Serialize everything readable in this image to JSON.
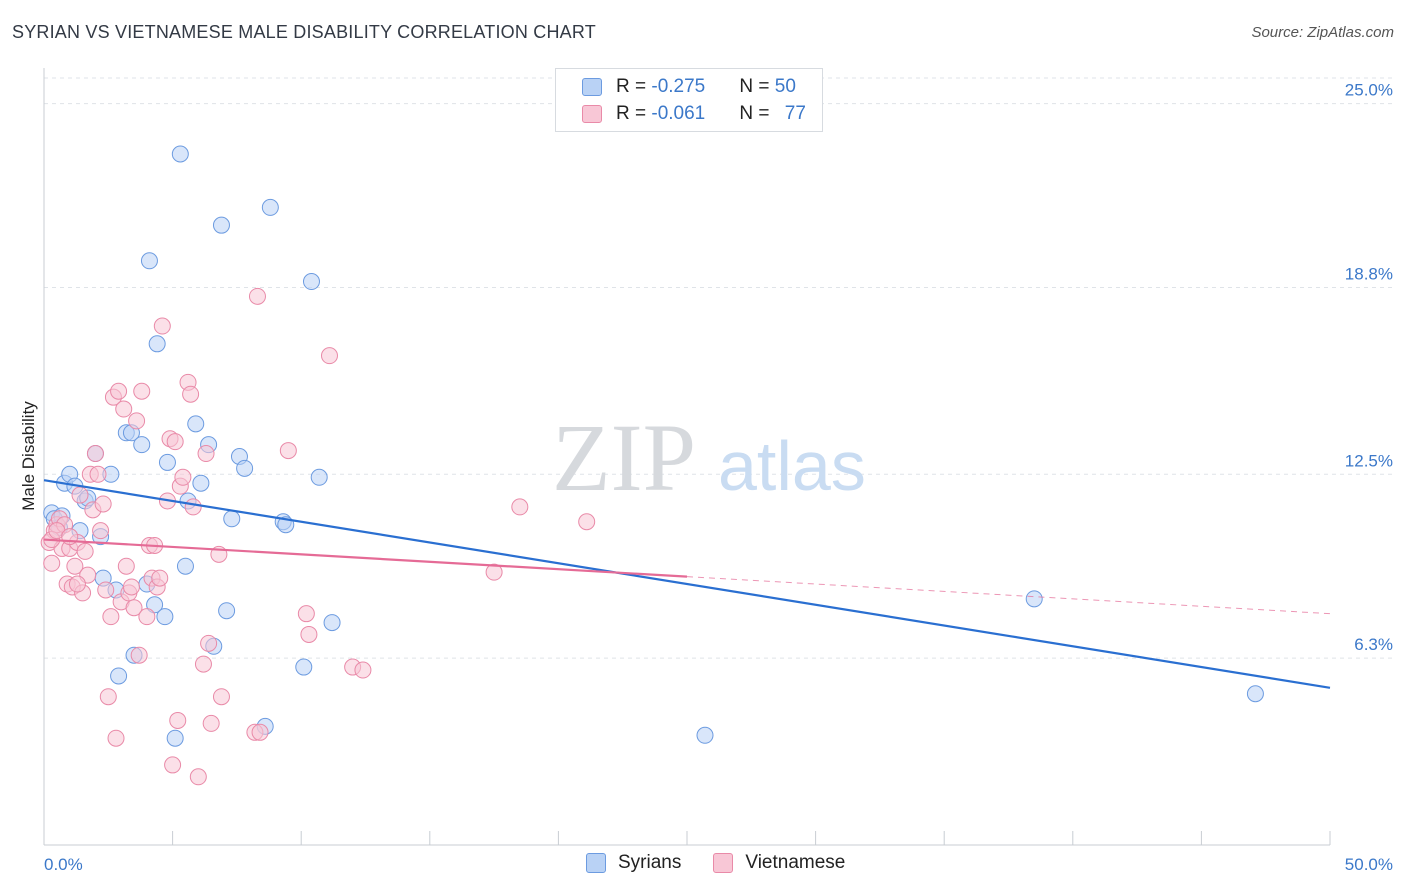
{
  "header": {
    "title": "SYRIAN VS VIETNAMESE MALE DISABILITY CORRELATION CHART",
    "source": "Source: ZipAtlas.com"
  },
  "watermark": {
    "zip": "ZIP",
    "atlas": "atlas"
  },
  "legend": {
    "rows": [
      {
        "r_label": "R = ",
        "r_value": "-0.275",
        "n_label": "N = ",
        "n_value": "50"
      },
      {
        "r_label": "R = ",
        "r_value": "-0.061",
        "n_label": "N = ",
        "n_value": "77"
      }
    ]
  },
  "bottom_legend": {
    "items": [
      {
        "label": "Syrians"
      },
      {
        "label": "Vietnamese"
      }
    ]
  },
  "colors": {
    "syrians_fill": "#b9d2f5",
    "syrians_stroke": "#6c9be0",
    "syrians_line": "#2a6fd1",
    "vietnamese_fill": "#f8c7d6",
    "vietnamese_stroke": "#e98aa8",
    "vietnamese_line": "#e56b96",
    "axis_label": "#3b78c9",
    "grid": "#dfe3e8"
  },
  "chart_data": {
    "type": "scatter",
    "title": "SYRIAN VS VIETNAMESE MALE DISABILITY CORRELATION CHART",
    "xlabel": "",
    "ylabel": "Male Disability",
    "xlim": [
      0,
      50
    ],
    "ylim": [
      0,
      26.2
    ],
    "x_tick_labels": [
      "0.0%",
      "50.0%"
    ],
    "y_ticks": [
      {
        "value": 6.3,
        "label": "6.3%"
      },
      {
        "value": 12.5,
        "label": "12.5%"
      },
      {
        "value": 18.8,
        "label": "18.8%"
      },
      {
        "value": 25.0,
        "label": "25.0%"
      }
    ],
    "grid": true,
    "legend_position": "top-center",
    "series": [
      {
        "name": "Syrians",
        "r": -0.275,
        "n": 50,
        "trend": {
          "x0": 0,
          "y0": 12.3,
          "x1": 50,
          "y1": 5.3,
          "solid_until": 50
        },
        "points": [
          [
            0.3,
            11.2
          ],
          [
            0.4,
            11.0
          ],
          [
            0.6,
            10.7
          ],
          [
            0.7,
            11.1
          ],
          [
            0.8,
            12.2
          ],
          [
            1.0,
            12.5
          ],
          [
            1.2,
            12.1
          ],
          [
            1.4,
            10.6
          ],
          [
            1.6,
            11.6
          ],
          [
            1.7,
            11.7
          ],
          [
            2.0,
            13.2
          ],
          [
            2.2,
            10.4
          ],
          [
            2.3,
            9.0
          ],
          [
            2.6,
            12.5
          ],
          [
            2.8,
            8.6
          ],
          [
            2.9,
            5.7
          ],
          [
            3.2,
            13.9
          ],
          [
            3.4,
            13.9
          ],
          [
            3.5,
            6.4
          ],
          [
            3.8,
            13.5
          ],
          [
            4.0,
            8.8
          ],
          [
            4.1,
            19.7
          ],
          [
            4.3,
            8.1
          ],
          [
            4.4,
            16.9
          ],
          [
            4.7,
            7.7
          ],
          [
            4.8,
            12.9
          ],
          [
            5.1,
            3.6
          ],
          [
            5.3,
            23.3
          ],
          [
            5.5,
            9.4
          ],
          [
            5.6,
            11.6
          ],
          [
            5.9,
            14.2
          ],
          [
            6.1,
            12.2
          ],
          [
            6.4,
            13.5
          ],
          [
            6.6,
            6.7
          ],
          [
            6.9,
            20.9
          ],
          [
            7.1,
            7.9
          ],
          [
            7.3,
            11.0
          ],
          [
            7.6,
            13.1
          ],
          [
            7.8,
            12.7
          ],
          [
            8.6,
            4.0
          ],
          [
            8.8,
            21.5
          ],
          [
            9.3,
            10.9
          ],
          [
            9.4,
            10.8
          ],
          [
            10.1,
            6.0
          ],
          [
            10.4,
            19.0
          ],
          [
            10.7,
            12.4
          ],
          [
            11.2,
            7.5
          ],
          [
            25.7,
            3.7
          ],
          [
            38.5,
            8.3
          ],
          [
            47.1,
            5.1
          ]
        ]
      },
      {
        "name": "Vietnamese",
        "r": -0.061,
        "n": 77,
        "trend": {
          "x0": 0,
          "y0": 10.3,
          "x1": 50,
          "y1": 7.8,
          "solid_until": 25
        },
        "points": [
          [
            0.2,
            10.2
          ],
          [
            0.3,
            9.5
          ],
          [
            0.4,
            10.6
          ],
          [
            0.5,
            10.8
          ],
          [
            0.6,
            11.0
          ],
          [
            0.7,
            10.0
          ],
          [
            0.8,
            10.8
          ],
          [
            0.9,
            8.8
          ],
          [
            1.0,
            10.0
          ],
          [
            1.1,
            8.7
          ],
          [
            1.2,
            9.4
          ],
          [
            1.3,
            10.2
          ],
          [
            1.4,
            11.8
          ],
          [
            1.5,
            8.5
          ],
          [
            1.6,
            9.9
          ],
          [
            1.7,
            9.1
          ],
          [
            1.8,
            12.5
          ],
          [
            1.9,
            11.3
          ],
          [
            2.0,
            13.2
          ],
          [
            2.1,
            12.5
          ],
          [
            2.2,
            10.6
          ],
          [
            2.3,
            11.5
          ],
          [
            2.4,
            8.6
          ],
          [
            2.5,
            5.0
          ],
          [
            2.6,
            7.7
          ],
          [
            2.7,
            15.1
          ],
          [
            2.8,
            3.6
          ],
          [
            2.9,
            15.3
          ],
          [
            3.0,
            8.2
          ],
          [
            3.1,
            14.7
          ],
          [
            3.2,
            9.4
          ],
          [
            3.3,
            8.5
          ],
          [
            3.4,
            8.7
          ],
          [
            3.5,
            8.0
          ],
          [
            3.6,
            14.3
          ],
          [
            3.7,
            6.4
          ],
          [
            3.8,
            15.3
          ],
          [
            4.0,
            7.7
          ],
          [
            4.1,
            10.1
          ],
          [
            4.2,
            9.0
          ],
          [
            4.3,
            10.1
          ],
          [
            4.4,
            8.7
          ],
          [
            4.5,
            9.0
          ],
          [
            4.6,
            17.5
          ],
          [
            4.8,
            11.6
          ],
          [
            4.9,
            13.7
          ],
          [
            5.0,
            2.7
          ],
          [
            5.1,
            13.6
          ],
          [
            5.2,
            4.2
          ],
          [
            5.3,
            12.1
          ],
          [
            5.4,
            12.4
          ],
          [
            5.6,
            15.6
          ],
          [
            5.7,
            15.2
          ],
          [
            5.8,
            11.4
          ],
          [
            6.0,
            2.3
          ],
          [
            6.2,
            6.1
          ],
          [
            6.3,
            13.2
          ],
          [
            6.4,
            6.8
          ],
          [
            6.5,
            4.1
          ],
          [
            6.8,
            9.8
          ],
          [
            6.9,
            5.0
          ],
          [
            8.2,
            3.8
          ],
          [
            8.3,
            18.5
          ],
          [
            8.4,
            3.8
          ],
          [
            9.5,
            13.3
          ],
          [
            10.2,
            7.8
          ],
          [
            10.3,
            7.1
          ],
          [
            11.1,
            16.5
          ],
          [
            12.0,
            6.0
          ],
          [
            12.4,
            5.9
          ],
          [
            17.5,
            9.2
          ],
          [
            18.5,
            11.4
          ],
          [
            21.1,
            10.9
          ],
          [
            0.3,
            10.3
          ],
          [
            0.5,
            10.6
          ],
          [
            1.0,
            10.4
          ],
          [
            1.3,
            8.8
          ]
        ]
      }
    ]
  }
}
